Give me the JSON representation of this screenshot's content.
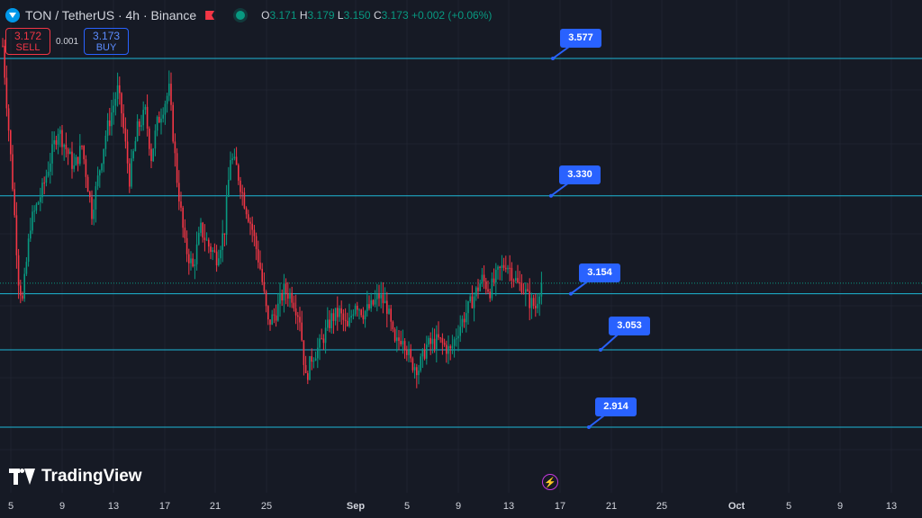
{
  "header": {
    "title": "TON / TetherUS · 4h · Binance",
    "ohlc": {
      "o": "3.171",
      "h": "3.179",
      "l": "3.150",
      "c": "3.173",
      "chg": "+0.002 (+0.06%)"
    }
  },
  "trade": {
    "sell_price": "3.172",
    "sell_label": "SELL",
    "spread": "0.001",
    "buy_price": "3.173",
    "buy_label": "BUY"
  },
  "branding": {
    "logo_text": "TradingView"
  },
  "colors": {
    "background": "#161a25",
    "up": "#089981",
    "down": "#f23645",
    "level_line": "#1eb8d6",
    "label_bg": "#2962ff"
  },
  "chart_data": {
    "type": "candlestick",
    "current_price": 3.173,
    "levels": [
      3.577,
      3.33,
      3.154,
      3.053,
      2.914
    ],
    "level_labels": [
      "3.577",
      "3.330",
      "3.154",
      "3.053",
      "2.914"
    ],
    "x_ticks": [
      "5",
      "9",
      "13",
      "17",
      "21",
      "25",
      "Sep",
      "5",
      "9",
      "13",
      "17",
      "21",
      "25",
      "Oct",
      "5",
      "9",
      "13"
    ],
    "close_path": [
      [
        0,
        3.6
      ],
      [
        2,
        3.5
      ],
      [
        5,
        3.35
      ],
      [
        8,
        3.18
      ],
      [
        10,
        3.14
      ],
      [
        14,
        3.28
      ],
      [
        20,
        3.34
      ],
      [
        28,
        3.45
      ],
      [
        36,
        3.38
      ],
      [
        40,
        3.42
      ],
      [
        45,
        3.3
      ],
      [
        52,
        3.44
      ],
      [
        58,
        3.52
      ],
      [
        60,
        3.48
      ],
      [
        64,
        3.36
      ],
      [
        68,
        3.45
      ],
      [
        72,
        3.48
      ],
      [
        75,
        3.4
      ],
      [
        78,
        3.46
      ],
      [
        84,
        3.52
      ],
      [
        88,
        3.36
      ],
      [
        92,
        3.24
      ],
      [
        96,
        3.2
      ],
      [
        100,
        3.27
      ],
      [
        104,
        3.24
      ],
      [
        108,
        3.22
      ],
      [
        112,
        3.27
      ],
      [
        115,
        3.4
      ],
      [
        118,
        3.38
      ],
      [
        122,
        3.32
      ],
      [
        126,
        3.27
      ],
      [
        130,
        3.2
      ],
      [
        134,
        3.1
      ],
      [
        138,
        3.12
      ],
      [
        142,
        3.16
      ],
      [
        146,
        3.15
      ],
      [
        150,
        3.11
      ],
      [
        153,
        3.0
      ],
      [
        156,
        3.04
      ],
      [
        160,
        3.06
      ],
      [
        166,
        3.11
      ],
      [
        170,
        3.12
      ],
      [
        174,
        3.09
      ],
      [
        178,
        3.14
      ],
      [
        182,
        3.12
      ],
      [
        186,
        3.13
      ],
      [
        190,
        3.15
      ],
      [
        194,
        3.13
      ],
      [
        198,
        3.06
      ],
      [
        202,
        3.08
      ],
      [
        206,
        3.03
      ],
      [
        210,
        3.02
      ],
      [
        214,
        3.06
      ],
      [
        220,
        3.07
      ],
      [
        226,
        3.05
      ],
      [
        230,
        3.09
      ],
      [
        234,
        3.12
      ],
      [
        238,
        3.15
      ],
      [
        242,
        3.18
      ],
      [
        246,
        3.16
      ],
      [
        250,
        3.19
      ],
      [
        254,
        3.21
      ],
      [
        256,
        3.2
      ],
      [
        260,
        3.17
      ],
      [
        262,
        3.17
      ],
      [
        266,
        3.14
      ],
      [
        269,
        3.13
      ],
      [
        272,
        3.18
      ]
    ]
  }
}
